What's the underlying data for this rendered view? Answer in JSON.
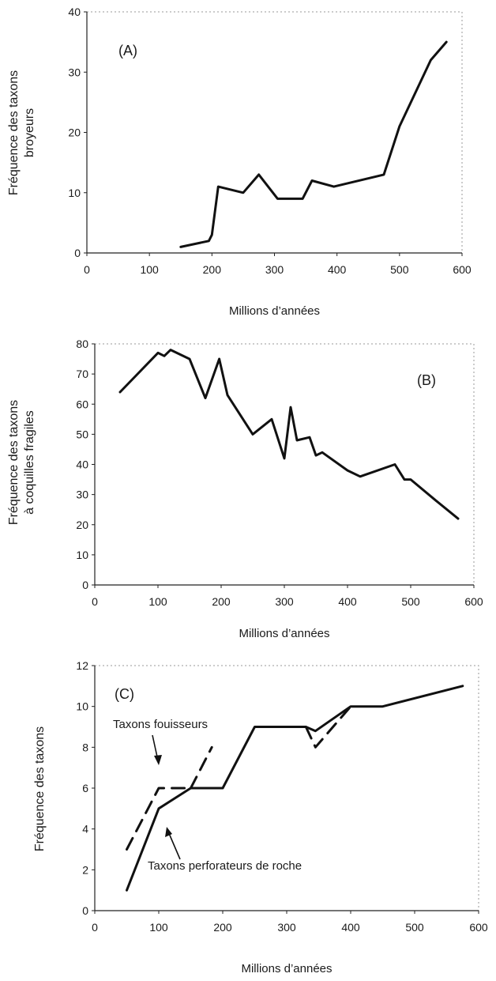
{
  "chart_data": [
    {
      "type": "line",
      "panel_label": "(A)",
      "xlabel": "Millions d’années",
      "ylabel": "Fréquence des taxons broyeurs",
      "ylabel_lines": [
        "Fréquence des taxons",
        "broyeurs"
      ],
      "xlim": [
        0,
        600
      ],
      "ylim": [
        0,
        40
      ],
      "xticks": [
        0,
        100,
        200,
        300,
        400,
        500,
        600
      ],
      "yticks": [
        0,
        10,
        20,
        30,
        40
      ],
      "series": [
        {
          "style": "solid",
          "x": [
            150,
            195,
            200,
            210,
            250,
            275,
            305,
            345,
            360,
            395,
            475,
            500,
            550,
            575
          ],
          "y": [
            1,
            2,
            3,
            11,
            10,
            13,
            9,
            9,
            12,
            11,
            13,
            21,
            32,
            35
          ]
        }
      ]
    },
    {
      "type": "line",
      "panel_label": "(B)",
      "xlabel": "Millions d’années",
      "ylabel": "Fréquence des taxons à coquilles fragiles",
      "ylabel_lines": [
        "Fréquence des taxons",
        "à coquilles fragiles"
      ],
      "xlim": [
        0,
        600
      ],
      "ylim": [
        0,
        80
      ],
      "xticks": [
        0,
        100,
        200,
        300,
        400,
        500,
        600
      ],
      "yticks": [
        0,
        10,
        20,
        30,
        40,
        50,
        60,
        70,
        80
      ],
      "series": [
        {
          "style": "solid",
          "x": [
            40,
            100,
            110,
            120,
            150,
            175,
            197,
            210,
            250,
            280,
            300,
            310,
            320,
            340,
            350,
            360,
            400,
            420,
            475,
            490,
            500,
            540,
            575
          ],
          "y": [
            64,
            77,
            76,
            78,
            75,
            62,
            75,
            63,
            50,
            55,
            42,
            59,
            48,
            49,
            43,
            44,
            38,
            36,
            40,
            35,
            35,
            28,
            22
          ]
        }
      ]
    },
    {
      "type": "line",
      "panel_label": "(C)",
      "xlabel": "Millions d’années",
      "ylabel": "Fréquence des taxons",
      "xlim": [
        0,
        600
      ],
      "ylim": [
        0,
        12
      ],
      "xticks": [
        0,
        100,
        200,
        300,
        400,
        500,
        600
      ],
      "yticks": [
        0,
        2,
        4,
        6,
        8,
        10,
        12
      ],
      "annotations": [
        "Taxons fouisseurs",
        "Taxons perforateurs de roche"
      ],
      "series": [
        {
          "style": "solid",
          "x": [
            50,
            100,
            150,
            200,
            250,
            330,
            345,
            400,
            450,
            575
          ],
          "y": [
            1,
            5,
            6,
            6,
            9,
            9,
            8.8,
            10,
            10,
            11
          ]
        },
        {
          "style": "dashed",
          "x": [
            50,
            100,
            150
          ],
          "y": [
            3,
            6,
            6
          ]
        },
        {
          "style": "dashed",
          "x": [
            150,
            183
          ],
          "y": [
            6,
            8
          ]
        },
        {
          "style": "dashed",
          "x": [
            330,
            345,
            400
          ],
          "y": [
            9,
            8,
            10
          ]
        }
      ]
    }
  ]
}
